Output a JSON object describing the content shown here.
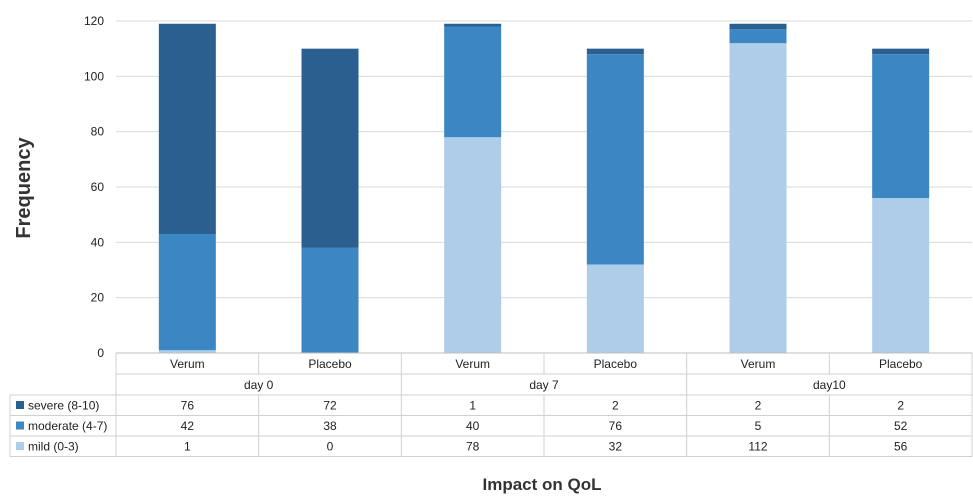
{
  "chart_data": {
    "type": "bar",
    "stacked": true,
    "title": "",
    "xlabel": "Impact on QoL",
    "ylabel": "Frequency",
    "ylim": [
      0,
      120
    ],
    "yticks": [
      0,
      20,
      40,
      60,
      80,
      100,
      120
    ],
    "grid": true,
    "groups": [
      "day 0",
      "day 7",
      "day10"
    ],
    "categories": [
      "Verum",
      "Placebo",
      "Verum",
      "Placebo",
      "Verum",
      "Placebo"
    ],
    "series": [
      {
        "name": "severe (8-10)",
        "color": "#2a5f8f",
        "values": [
          76,
          72,
          1,
          2,
          2,
          2
        ]
      },
      {
        "name": "moderate (4-7)",
        "color": "#3a87c4",
        "values": [
          42,
          38,
          40,
          76,
          5,
          52
        ]
      },
      {
        "name": "mild (0-3)",
        "color": "#aecde8",
        "values": [
          1,
          0,
          78,
          32,
          112,
          56
        ]
      }
    ],
    "legend_placement": "data-table-left"
  }
}
